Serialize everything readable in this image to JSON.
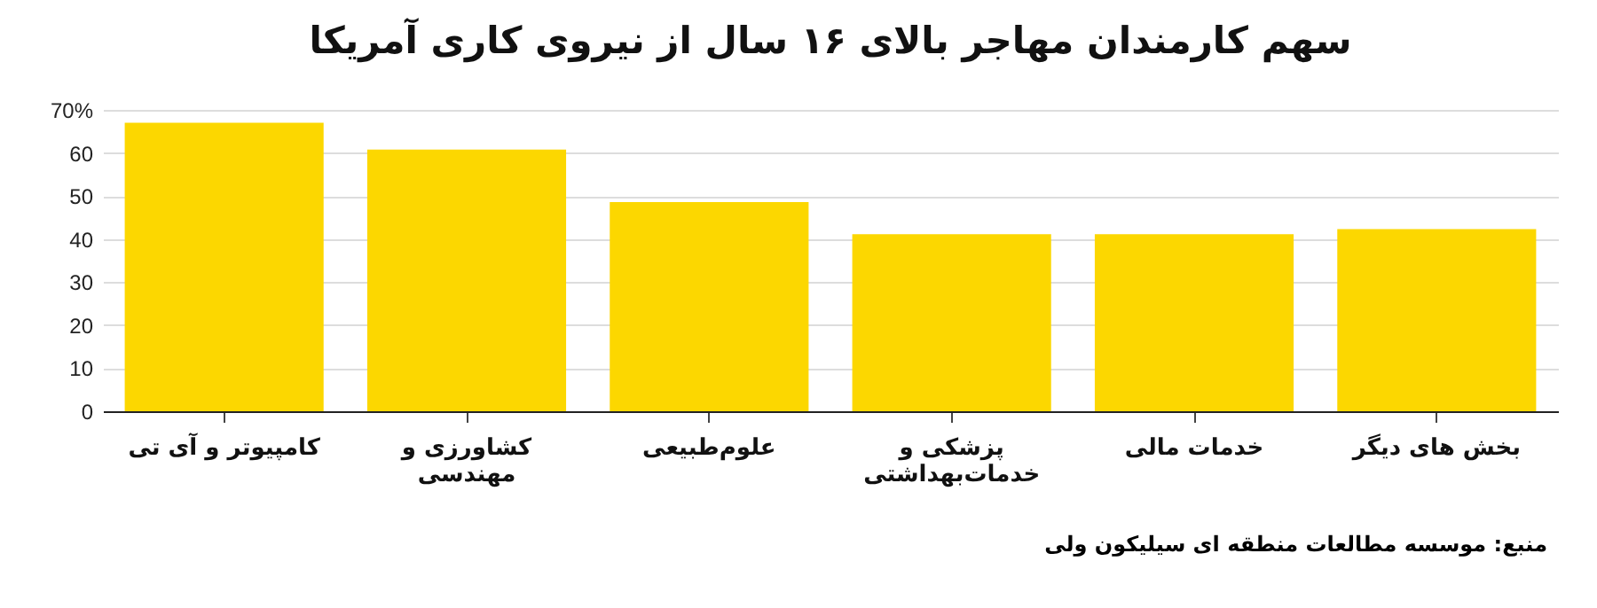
{
  "chart_data": {
    "type": "bar",
    "title": "سهم کارمندان مهاجر بالای ۱۶ سال از نیروی کاری آمریکا",
    "categories": [
      "کامپیوتر و آی تی",
      "کشاورزی و\nمهندسی",
      "علوم‌طبیعی",
      "پزشکی و\nخدمات‌بهداشتی",
      "خدمات‌ مالی",
      "بخش های دیگر"
    ],
    "values": [
      67,
      60.8,
      48.6,
      41.1,
      41.1,
      42.3
    ],
    "color": "#fcd700",
    "ylim": [
      0,
      70
    ],
    "yticks": [
      0,
      10,
      20,
      30,
      40,
      50,
      60,
      {
        "value": 70,
        "label": "70%"
      }
    ],
    "grid": "y",
    "annotations": [
      "منبع: موسسه مطالعات منطقه ای سیلیکون ولی"
    ]
  }
}
